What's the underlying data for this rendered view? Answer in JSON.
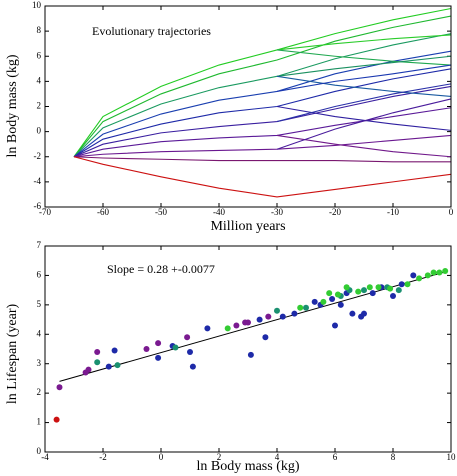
{
  "chart_data": [
    {
      "type": "line",
      "annotation": "Evolutionary trajectories",
      "xlabel": "Million years",
      "ylabel": "ln Body mass (kg)",
      "xlim": [
        -70,
        0
      ],
      "xticks": [
        -70,
        -60,
        -50,
        -40,
        -30,
        -20,
        -10,
        0
      ],
      "ylim": [
        -6,
        10
      ],
      "yticks": [
        -6,
        -4,
        -2,
        0,
        2,
        4,
        6,
        8,
        10
      ],
      "x": [
        -65,
        -60,
        -50,
        -40,
        -30,
        -20,
        -10,
        0
      ],
      "series": [
        {
          "color": "#22cc22",
          "values": [
            -2,
            1.2,
            3.6,
            5.3,
            6.5,
            7.8,
            8.9,
            9.8
          ]
        },
        {
          "color": "#1fb830",
          "values": [
            -2,
            0.8,
            3.0,
            4.6,
            5.7,
            7.2,
            8.3,
            9.2
          ]
        },
        {
          "color": "#1a9a60",
          "values": [
            -2,
            0.3,
            2.2,
            3.5,
            4.4,
            5.8,
            6.9,
            7.8
          ]
        },
        {
          "color": "#1a3fb0",
          "values": [
            -2,
            -0.2,
            1.4,
            2.5,
            3.2,
            4.6,
            5.6,
            6.4
          ]
        },
        {
          "color": "#1e2aa8",
          "values": [
            -2,
            -0.6,
            0.6,
            1.5,
            2.0,
            3.2,
            4.2,
            5.0
          ]
        },
        {
          "color": "#3a1fa0",
          "values": [
            -2,
            -1.0,
            -0.1,
            0.4,
            0.8,
            1.8,
            2.8,
            3.6
          ]
        },
        {
          "color": "#5a1a98",
          "values": [
            -2,
            -1.4,
            -0.8,
            -0.5,
            -0.3,
            0.5,
            1.2,
            1.9
          ]
        },
        {
          "color": "#6a1890",
          "values": [
            -2,
            -1.8,
            -1.6,
            -1.5,
            -1.4,
            -1.1,
            -0.7,
            -0.3
          ]
        },
        {
          "color": "#7a1870",
          "values": [
            -2,
            -2.1,
            -2.2,
            -2.3,
            -2.3,
            -2.3,
            -2.4,
            -2.4
          ]
        },
        {
          "color": "#cc1111",
          "values": [
            -2,
            -2.6,
            -3.6,
            -4.5,
            -5.2,
            -4.6,
            -4.0,
            -3.4
          ]
        },
        {
          "color": "#2acc2a",
          "values": [
            null,
            null,
            null,
            null,
            6.5,
            7.0,
            7.4,
            7.7
          ]
        },
        {
          "color": "#20a850",
          "values": [
            null,
            null,
            null,
            null,
            6.5,
            6.0,
            5.6,
            5.3
          ]
        },
        {
          "color": "#1a9060",
          "values": [
            null,
            null,
            null,
            null,
            4.4,
            5.0,
            5.5,
            6.0
          ]
        },
        {
          "color": "#1a5aa0",
          "values": [
            null,
            null,
            null,
            null,
            4.4,
            3.7,
            3.2,
            2.8
          ]
        },
        {
          "color": "#1a38b0",
          "values": [
            null,
            null,
            null,
            null,
            3.2,
            4.0,
            4.6,
            5.3
          ]
        },
        {
          "color": "#3020a0",
          "values": [
            null,
            null,
            null,
            null,
            2.0,
            1.2,
            0.6,
            0.1
          ]
        },
        {
          "color": "#2a30a8",
          "values": [
            null,
            null,
            null,
            null,
            0.8,
            2.0,
            3.0,
            3.8
          ]
        },
        {
          "color": "#70188a",
          "values": [
            null,
            null,
            null,
            null,
            -0.3,
            -1.0,
            -1.6,
            -2.0
          ]
        },
        {
          "color": "#4a1c9c",
          "values": [
            null,
            null,
            null,
            null,
            -1.4,
            0.2,
            1.5,
            2.6
          ]
        }
      ]
    },
    {
      "type": "scatter",
      "annotation": "Slope = 0.28 +-0.0077",
      "xlabel": "ln Body mass (kg)",
      "ylabel": "ln Lifespan (year)",
      "xlim": [
        -4,
        10
      ],
      "xticks": [
        -4,
        -2,
        0,
        2,
        4,
        6,
        8,
        10
      ],
      "ylim": [
        0,
        7
      ],
      "yticks": [
        0,
        1,
        2,
        3,
        4,
        5,
        6,
        7
      ],
      "series": [
        {
          "color": "#cc1111",
          "x": [
            -3.6
          ],
          "values": [
            1.1
          ]
        },
        {
          "color": "#7a1a90",
          "x": [
            -3.5,
            -2.6,
            -2.5,
            -2.2,
            -0.5,
            -0.1,
            0.9,
            2.6,
            2.9,
            3.7,
            3.0
          ],
          "values": [
            2.2,
            2.7,
            2.8,
            3.4,
            3.5,
            3.7,
            3.9,
            4.3,
            4.4,
            4.6,
            4.4
          ]
        },
        {
          "color": "#1e2aa8",
          "x": [
            -1.8,
            -1.6,
            -0.1,
            0.4,
            1.0,
            1.1,
            1.6,
            3.1,
            3.4,
            3.6,
            4.2,
            4.6,
            5.3,
            5.5,
            5.9,
            6.2,
            6.4,
            6.6,
            6.9,
            7.0,
            7.3,
            7.6,
            8.0,
            8.3,
            8.7,
            6.0
          ],
          "values": [
            2.9,
            3.45,
            3.2,
            3.6,
            3.4,
            2.9,
            4.2,
            3.3,
            4.5,
            3.9,
            4.6,
            4.7,
            5.1,
            5.0,
            5.2,
            5.0,
            5.4,
            4.7,
            4.6,
            4.7,
            5.4,
            5.6,
            5.3,
            5.7,
            6.0,
            4.3
          ]
        },
        {
          "color": "#1a9070",
          "x": [
            -2.2,
            -1.5,
            0.5,
            4.0,
            5.0,
            6.2,
            6.5,
            7.0,
            7.8,
            8.2
          ],
          "values": [
            3.05,
            2.95,
            3.55,
            4.8,
            4.9,
            5.3,
            5.5,
            5.5,
            5.6,
            5.5
          ]
        },
        {
          "color": "#33cc33",
          "x": [
            2.3,
            4.8,
            5.6,
            6.1,
            6.8,
            7.2,
            7.5,
            8.5,
            8.9,
            9.2,
            9.4,
            9.6,
            9.8,
            5.8,
            6.4,
            7.9
          ],
          "values": [
            4.2,
            4.9,
            5.1,
            5.35,
            5.45,
            5.6,
            5.6,
            5.7,
            5.9,
            6.0,
            6.1,
            6.1,
            6.15,
            5.4,
            5.6,
            5.55
          ]
        }
      ],
      "fit": {
        "color": "#000000",
        "x": [
          -3.5,
          9.8
        ],
        "values": [
          2.4,
          6.12
        ]
      }
    }
  ]
}
